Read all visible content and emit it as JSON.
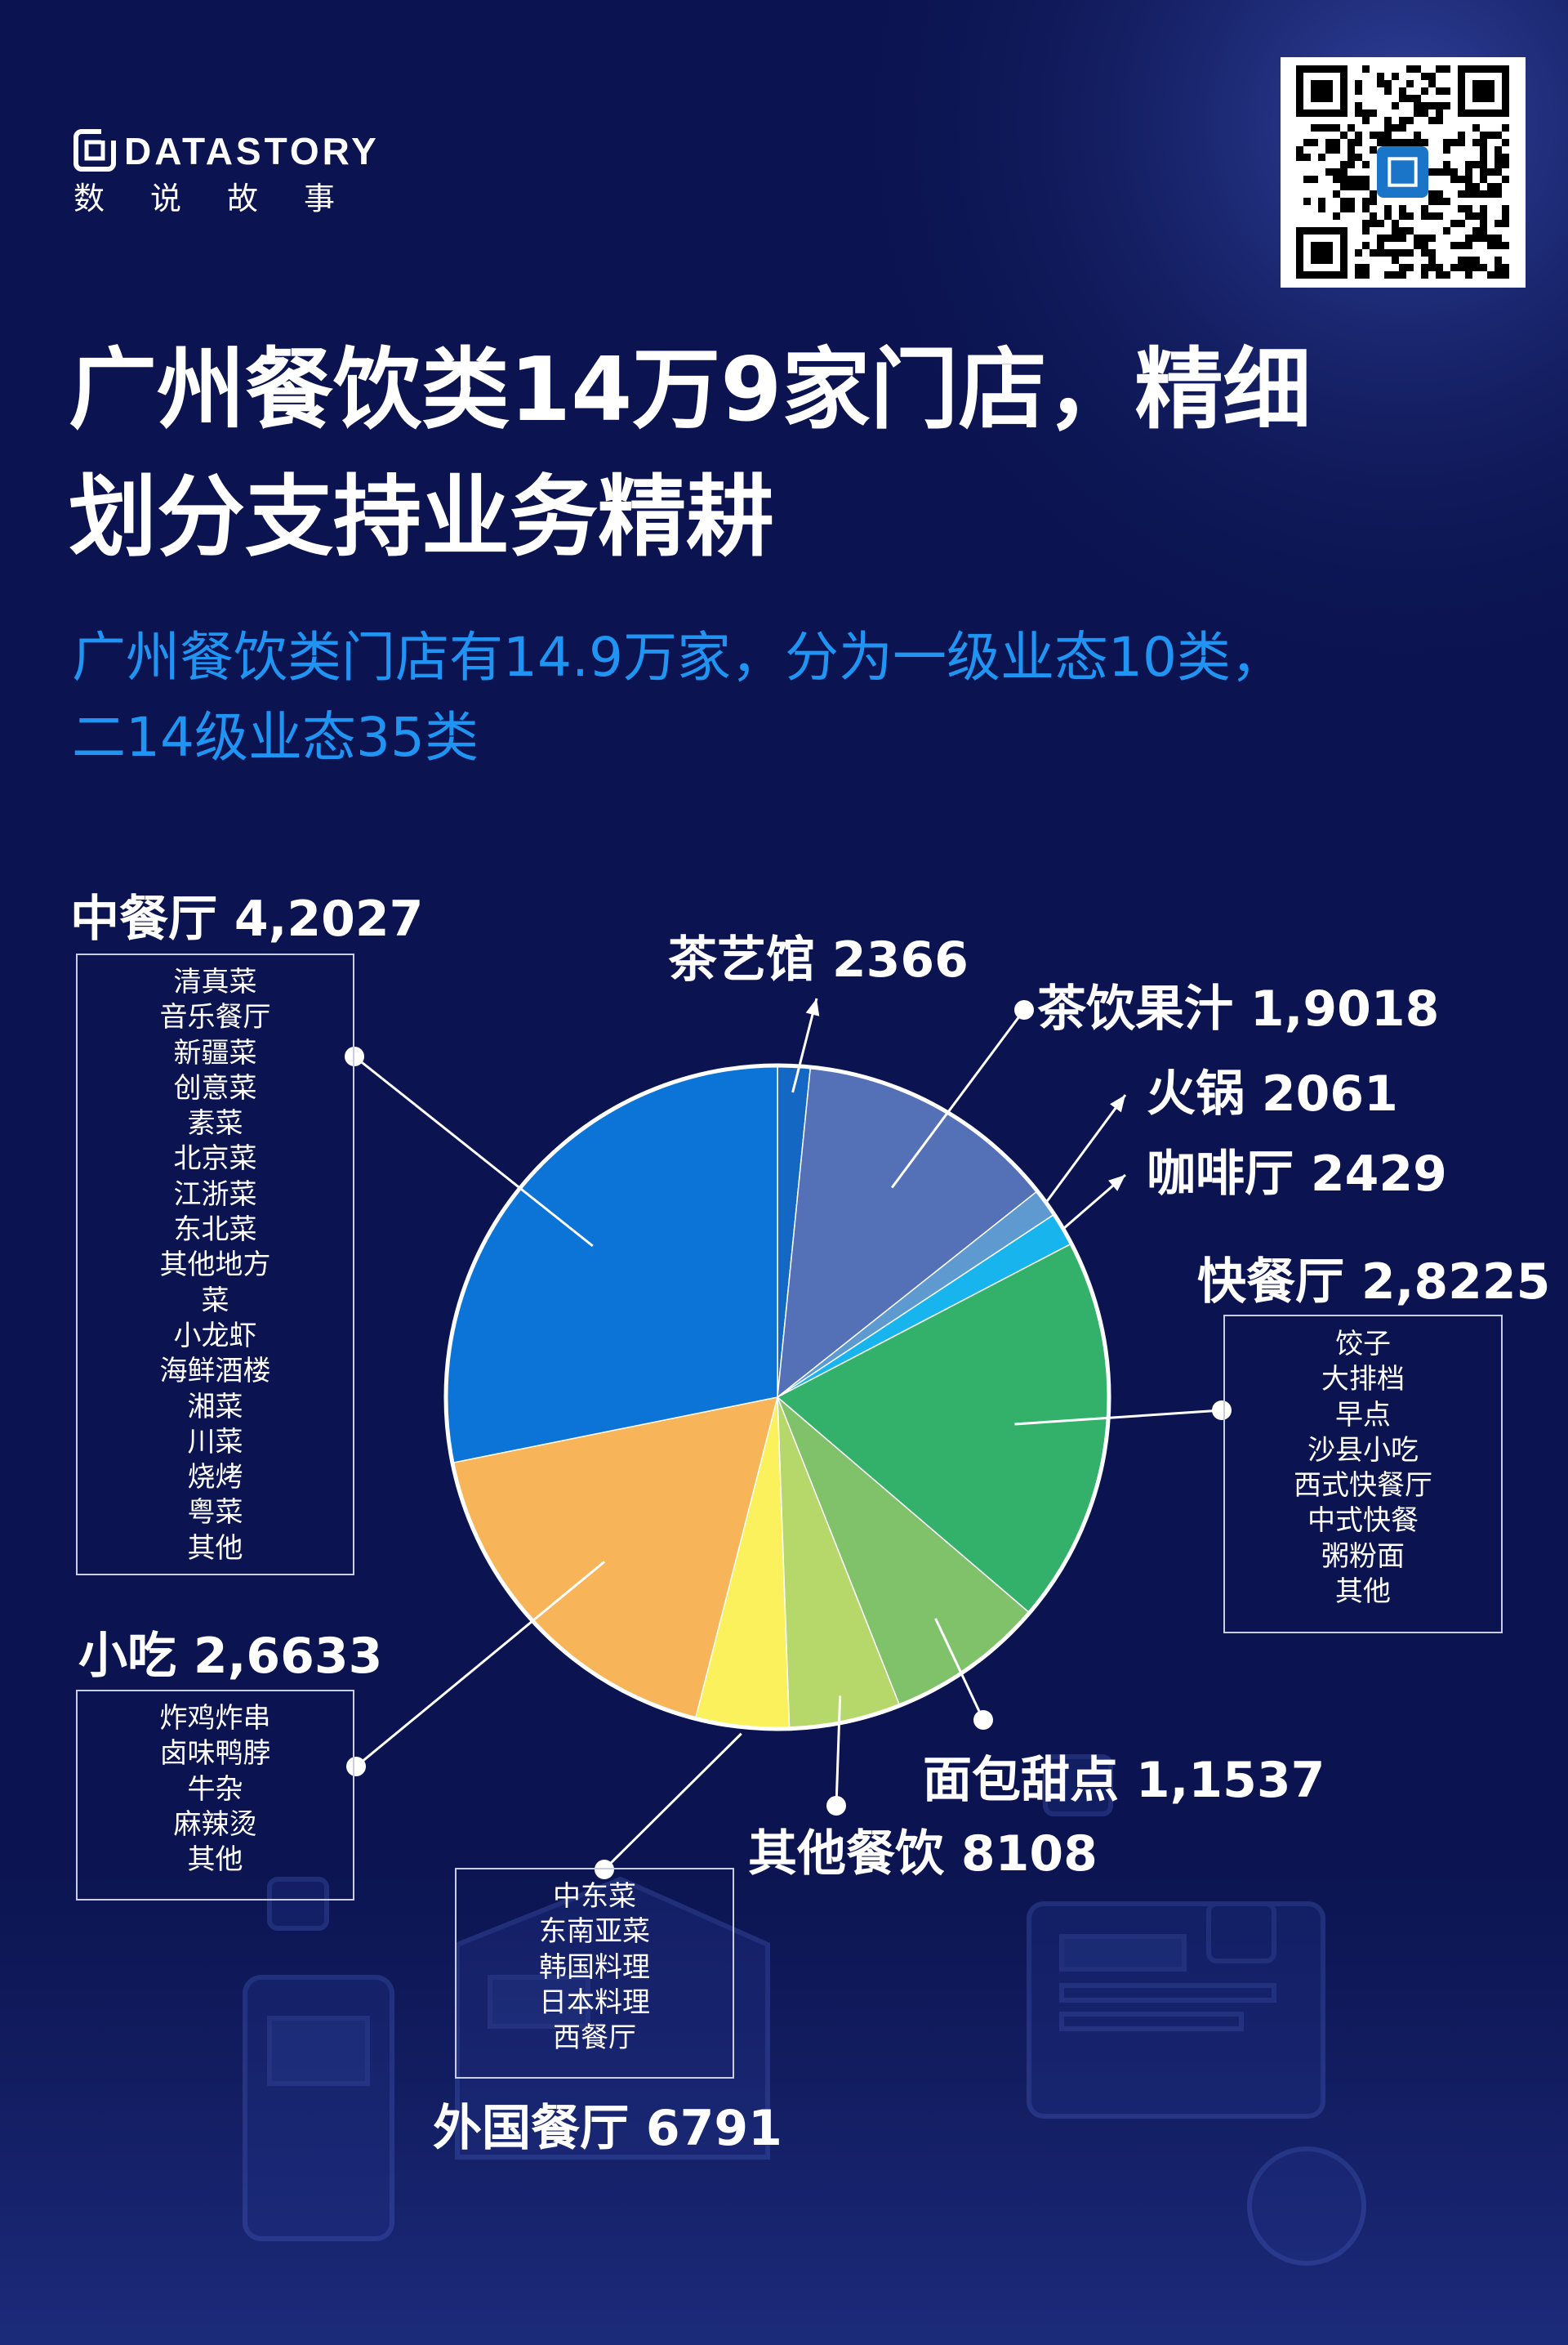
{
  "brand": {
    "wordmark": "DATASTORY",
    "name_cn": "数说故事"
  },
  "header": {
    "title_line1": "广州餐饮类14万9家门店，精细",
    "title_line2": "划分支持业务精耕",
    "subtitle_line1": "广州餐饮类门店有14.9万家，分为一级业态10类，",
    "subtitle_line2": "二14级业态35类"
  },
  "colors": {
    "background": "#0b1450",
    "accent_blue": "#1f94f2"
  },
  "chart_data": {
    "type": "pie",
    "title": "",
    "slices": [
      {
        "label": "茶艺馆",
        "value_label": "2366",
        "value": 2366,
        "color": "#1468c4"
      },
      {
        "label": "茶饮果汁",
        "value_label": "1,9018",
        "value": 19018,
        "color": "#5470b6"
      },
      {
        "label": "火锅",
        "value_label": "2061",
        "value": 2061,
        "color": "#5e9ad0"
      },
      {
        "label": "咖啡厅",
        "value_label": "2429",
        "value": 2429,
        "color": "#18b4ee"
      },
      {
        "label": "快餐厅",
        "value_label": "2,8225",
        "value": 28225,
        "color": "#33b16a",
        "subcategories": [
          "饺子",
          "大排档",
          "早点",
          "沙县小吃",
          "西式快餐厅",
          "中式快餐",
          "粥粉面",
          "其他"
        ]
      },
      {
        "label": "面包甜点",
        "value_label": "1,1537",
        "value": 11537,
        "color": "#80c26a"
      },
      {
        "label": "其他餐饮",
        "value_label": "8108",
        "value": 8108,
        "color": "#b6d86a"
      },
      {
        "label": "外国餐厅",
        "value_label": "6791",
        "value": 6791,
        "color": "#fbf15c",
        "subcategories": [
          "中东菜",
          "东南亚菜",
          "韩国料理",
          "日本料理",
          "西餐厅"
        ]
      },
      {
        "label": "小吃",
        "value_label": "2,6633",
        "value": 26633,
        "color": "#f7b458",
        "subcategories": [
          "炸鸡炸串",
          "卤味鸭脖",
          "牛杂",
          "麻辣烫",
          "其他"
        ]
      },
      {
        "label": "中餐厅",
        "value_label": "4,2027",
        "value": 42027,
        "color": "#0c74d6",
        "subcategories": [
          "清真菜",
          "音乐餐厅",
          "新疆菜",
          "创意菜",
          "素菜",
          "北京菜",
          "江浙菜",
          "东北菜",
          "其他地方",
          "菜",
          "小龙虾",
          "海鲜酒楼",
          "湘菜",
          "川菜",
          "烧烤",
          "粤菜",
          "其他"
        ]
      }
    ]
  }
}
